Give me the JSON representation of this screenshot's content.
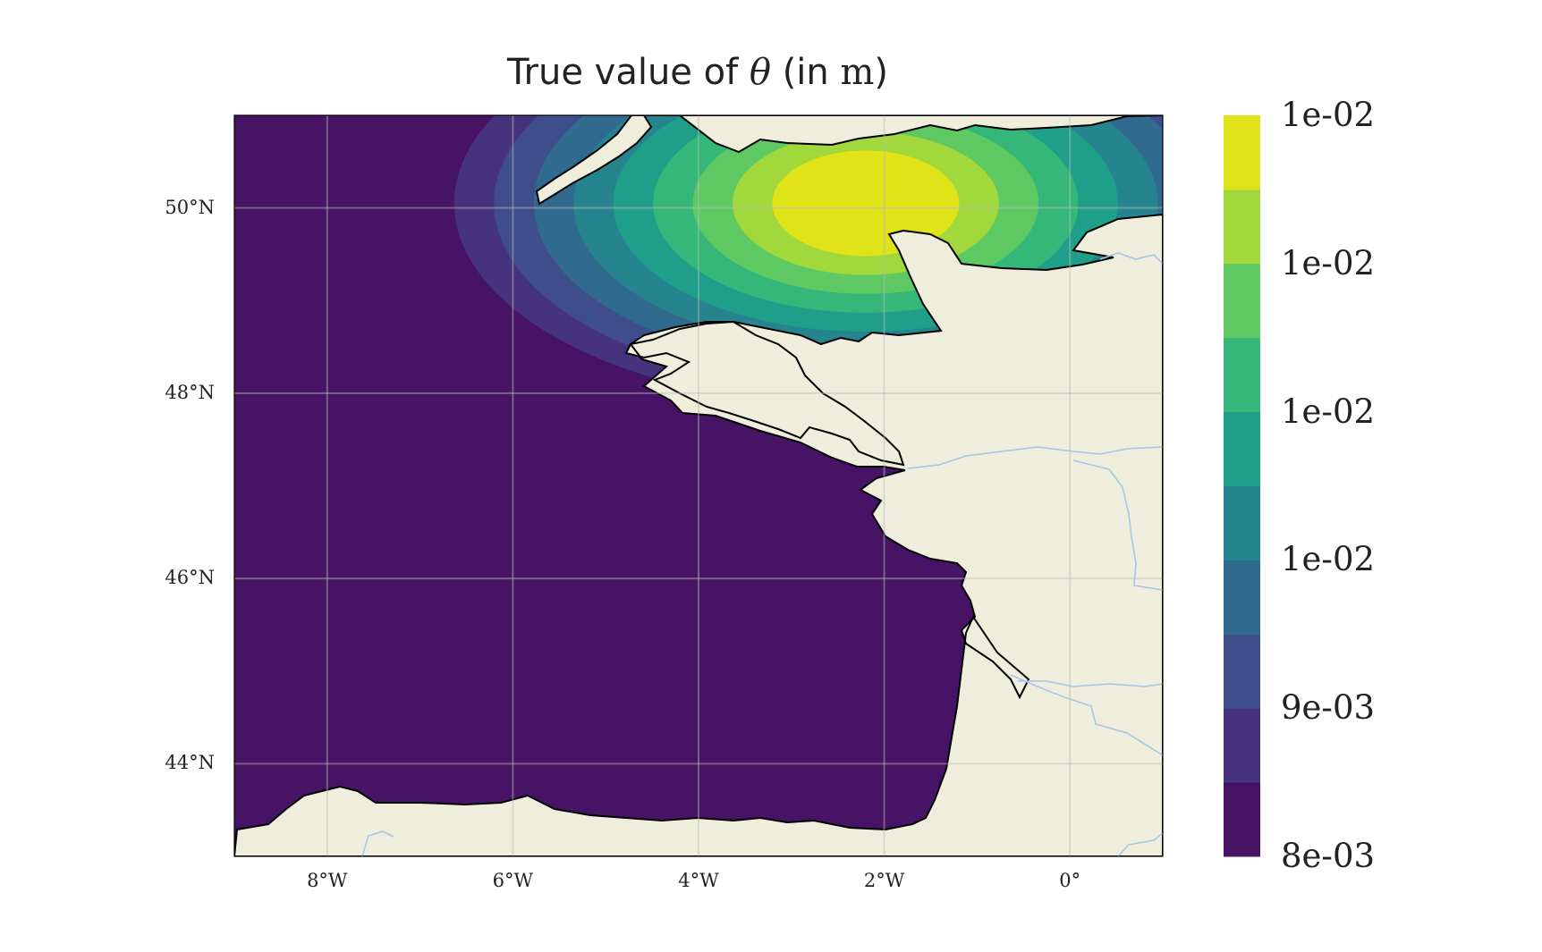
{
  "title": {
    "prefix": "True value of ",
    "symbol": "θ",
    "open_paren": " (in ",
    "unit": "m",
    "close_paren": ")"
  },
  "map": {
    "extent": {
      "lon_min": -9.0,
      "lon_max": 1.0,
      "lat_min": 43.0,
      "lat_max": 51.0
    },
    "lat_ticks": [
      {
        "value": 50,
        "label": "50°N"
      },
      {
        "value": 48,
        "label": "48°N"
      },
      {
        "value": 46,
        "label": "46°N"
      },
      {
        "value": 44,
        "label": "44°N"
      }
    ],
    "lon_ticks": [
      {
        "value": -8,
        "label": "8°W"
      },
      {
        "value": -6,
        "label": "6°W"
      },
      {
        "value": -4,
        "label": "4°W"
      },
      {
        "value": -2,
        "label": "2°W"
      },
      {
        "value": 0,
        "label": "0°"
      }
    ],
    "colors": {
      "land": "#efeedd",
      "ocean": "#471465",
      "coastline": "#000000",
      "river": "#a9c6e6",
      "gridline": "#bbbbbb"
    },
    "field": {
      "type": "filled-contour",
      "center": {
        "lon": -2.2,
        "lat": 50.05
      }
    }
  },
  "colorbar": {
    "levels": [
      "#461365",
      "#46337e",
      "#3d4e8a",
      "#306a8e",
      "#25848e",
      "#1f9e89",
      "#35b779",
      "#5ec962",
      "#a1d83b",
      "#dfe318"
    ],
    "tick_labels": [
      "1e-02",
      "1e-02",
      "1e-02",
      "1e-02",
      "9e-03",
      "8e-03"
    ]
  }
}
